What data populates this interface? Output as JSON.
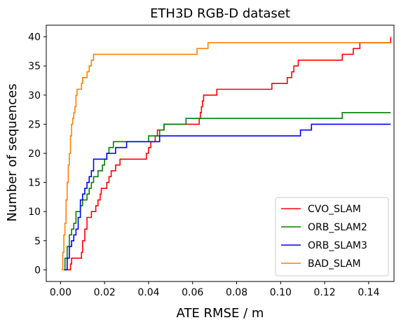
{
  "chart_data": {
    "type": "line",
    "step": true,
    "title": "ETH3D RGB-D dataset",
    "xlabel": "ATE RMSE / m",
    "ylabel": "Number of sequences",
    "xlim": [
      -0.0065,
      0.1515
    ],
    "ylim": [
      -2,
      42
    ],
    "xticks": [
      0.0,
      0.02,
      0.04,
      0.06,
      0.08,
      0.1,
      0.12,
      0.14
    ],
    "xtick_labels": [
      "0.00",
      "0.02",
      "0.04",
      "0.06",
      "0.08",
      "0.10",
      "0.12",
      "0.14"
    ],
    "yticks": [
      0,
      5,
      10,
      15,
      20,
      25,
      30,
      35,
      40
    ],
    "ytick_labels": [
      "0",
      "5",
      "10",
      "15",
      "20",
      "25",
      "30",
      "35",
      "40"
    ],
    "grid": false,
    "legend_position": "lower-right",
    "series": [
      {
        "name": "CVO_SLAM",
        "color": "#ff0000",
        "x": [
          0.0015,
          0.003,
          0.004,
          0.0045,
          0.005,
          0.006,
          0.009,
          0.0095,
          0.01,
          0.011,
          0.012,
          0.013,
          0.014,
          0.016,
          0.017,
          0.018,
          0.0185,
          0.02,
          0.021,
          0.022,
          0.023,
          0.024,
          0.025,
          0.026,
          0.027,
          0.029,
          0.03,
          0.036,
          0.039,
          0.04,
          0.041,
          0.043,
          0.044,
          0.045,
          0.047,
          0.055,
          0.063,
          0.0635,
          0.064,
          0.0645,
          0.065,
          0.066,
          0.071,
          0.086,
          0.096,
          0.099,
          0.103,
          0.104,
          0.105,
          0.106,
          0.107,
          0.108,
          0.109,
          0.11,
          0.127,
          0.128,
          0.129,
          0.133,
          0.136,
          0.15
        ],
        "y": [
          0,
          0,
          0,
          1,
          2,
          2,
          2,
          3,
          5,
          7,
          9,
          9,
          10,
          11,
          12,
          13,
          14,
          14,
          15,
          16,
          17,
          17,
          18,
          18,
          19,
          19,
          19,
          19,
          20,
          21,
          22,
          23,
          24,
          24,
          25,
          25,
          26,
          27,
          28,
          29,
          30,
          30,
          31,
          31,
          32,
          32,
          33,
          33,
          34,
          35,
          35,
          36,
          36,
          36,
          36,
          37,
          37,
          38,
          39,
          40
        ]
      },
      {
        "name": "ORB_SLAM2",
        "color": "#008000",
        "x": [
          0.0015,
          0.002,
          0.003,
          0.004,
          0.005,
          0.006,
          0.007,
          0.008,
          0.009,
          0.01,
          0.011,
          0.012,
          0.013,
          0.014,
          0.015,
          0.016,
          0.017,
          0.018,
          0.019,
          0.02,
          0.021,
          0.022,
          0.024,
          0.026,
          0.028,
          0.03,
          0.032,
          0.034,
          0.036,
          0.038,
          0.04,
          0.042,
          0.043,
          0.045,
          0.046,
          0.047,
          0.057,
          0.065,
          0.1,
          0.128,
          0.15
        ],
        "y": [
          0,
          2,
          4,
          6,
          7,
          8,
          10,
          10,
          11,
          12,
          12,
          13,
          14,
          15,
          16,
          16,
          17,
          17,
          18,
          19,
          20,
          21,
          22,
          22,
          22,
          22,
          22,
          22,
          22,
          22,
          23,
          23,
          23,
          24,
          24,
          25,
          26,
          26,
          26,
          27,
          27
        ]
      },
      {
        "name": "ORB_SLAM3",
        "color": "#0000ff",
        "x": [
          0.002,
          0.003,
          0.004,
          0.005,
          0.006,
          0.007,
          0.008,
          0.009,
          0.01,
          0.011,
          0.012,
          0.013,
          0.014,
          0.015,
          0.016,
          0.017,
          0.018,
          0.019,
          0.02,
          0.021,
          0.022,
          0.025,
          0.03,
          0.035,
          0.04,
          0.045,
          0.05,
          0.06,
          0.07,
          0.08,
          0.09,
          0.1,
          0.109,
          0.114,
          0.15
        ],
        "y": [
          0,
          2,
          4,
          5,
          6,
          7,
          9,
          12,
          13,
          14,
          15,
          16,
          17,
          19,
          19,
          19,
          19,
          19,
          19,
          20,
          20,
          21,
          22,
          22,
          22,
          23,
          23,
          23,
          23,
          23,
          23,
          23,
          24,
          25,
          25
        ]
      },
      {
        "name": "BAD_SLAM",
        "color": "#ff8000",
        "x": [
          0.0005,
          0.001,
          0.0015,
          0.002,
          0.0025,
          0.003,
          0.0035,
          0.004,
          0.0045,
          0.005,
          0.0055,
          0.006,
          0.0065,
          0.007,
          0.0075,
          0.008,
          0.0085,
          0.009,
          0.0095,
          0.01,
          0.012,
          0.013,
          0.014,
          0.015,
          0.016,
          0.02,
          0.03,
          0.04,
          0.05,
          0.062,
          0.067,
          0.08,
          0.1,
          0.12,
          0.14,
          0.15
        ],
        "y": [
          0,
          3,
          6,
          8,
          12,
          15,
          18,
          20,
          23,
          25,
          26,
          27,
          28,
          30,
          31,
          31,
          31,
          31,
          32,
          33,
          34,
          35,
          36,
          37,
          37,
          37,
          37,
          37,
          37,
          38,
          39,
          39,
          39,
          39,
          39,
          39
        ]
      }
    ]
  }
}
